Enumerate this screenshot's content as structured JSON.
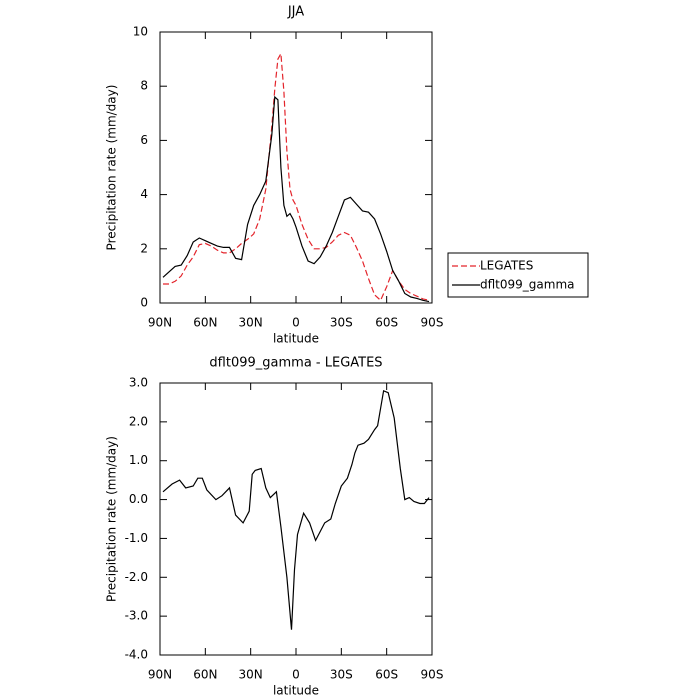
{
  "chart_data": [
    {
      "type": "line",
      "title": "JJA",
      "xlabel": "latitude",
      "ylabel": "Precipitation rate (mm/day)",
      "x": [
        88,
        84,
        80,
        76,
        72,
        68,
        64,
        60,
        56,
        52,
        48,
        44,
        40,
        36,
        32,
        28,
        24,
        20,
        16,
        14,
        12,
        10,
        8,
        6,
        4,
        2,
        0,
        -4,
        -8,
        -12,
        -16,
        -20,
        -24,
        -28,
        -32,
        -36,
        -40,
        -44,
        -48,
        -52,
        -56,
        -60,
        -64,
        -68,
        -72,
        -76,
        -80,
        -84,
        -88
      ],
      "series": [
        {
          "name": "LEGATES",
          "color": "#e3242b",
          "linestyle": "dashed",
          "values": [
            0.7,
            0.7,
            0.8,
            1.0,
            1.4,
            1.7,
            2.15,
            2.2,
            2.1,
            1.95,
            1.85,
            1.85,
            2.0,
            2.2,
            2.35,
            2.55,
            3.1,
            4.2,
            6.5,
            7.9,
            9.0,
            9.2,
            7.8,
            5.6,
            4.2,
            3.8,
            3.6,
            2.9,
            2.35,
            2.0,
            2.0,
            2.05,
            2.25,
            2.5,
            2.6,
            2.5,
            2.05,
            1.55,
            0.9,
            0.3,
            0.1,
            0.6,
            1.2,
            0.8,
            0.5,
            0.35,
            0.25,
            0.15,
            0.1
          ]
        },
        {
          "name": "dflt099_gamma",
          "color": "#000000",
          "linestyle": "solid",
          "values": [
            0.95,
            1.15,
            1.35,
            1.4,
            1.75,
            2.25,
            2.4,
            2.3,
            2.2,
            2.1,
            2.05,
            2.05,
            1.65,
            1.6,
            2.9,
            3.6,
            4.0,
            4.5,
            6.2,
            7.6,
            7.5,
            5.0,
            3.6,
            3.2,
            3.3,
            3.1,
            2.8,
            2.1,
            1.55,
            1.45,
            1.7,
            2.1,
            2.6,
            3.2,
            3.8,
            3.9,
            3.65,
            3.4,
            3.35,
            3.1,
            2.55,
            1.9,
            1.2,
            0.8,
            0.35,
            0.22,
            0.17,
            0.1,
            0.05
          ]
        }
      ],
      "xlim": [
        90,
        -90
      ],
      "xticks": [
        {
          "value": 90,
          "label": "90N"
        },
        {
          "value": 60,
          "label": "60N"
        },
        {
          "value": 30,
          "label": "30N"
        },
        0,
        {
          "value": -30,
          "label": "30S"
        },
        {
          "value": -60,
          "label": "60S"
        },
        {
          "value": -90,
          "label": "90S"
        }
      ],
      "ylim": [
        0,
        10
      ],
      "yticks": [
        0,
        2,
        4,
        6,
        8,
        10
      ],
      "legend": "right"
    },
    {
      "type": "line",
      "title": "dflt099_gamma - LEGATES",
      "xlabel": "latitude",
      "ylabel": "Precipitation rate (mm/day)",
      "x": [
        88,
        82,
        77,
        73,
        68,
        65,
        62,
        59,
        53,
        49,
        44,
        40,
        35,
        31,
        29,
        27,
        23,
        20,
        17,
        13,
        10,
        6,
        3,
        1,
        -1,
        -5,
        -9,
        -13,
        -19,
        -23,
        -26,
        -30,
        -34,
        -37,
        -39,
        -41,
        -45,
        -48,
        -52,
        -54,
        -58,
        -61,
        -65,
        -69,
        -72,
        -75,
        -78,
        -82,
        -85,
        -88
      ],
      "color": "#000000",
      "values": [
        0.2,
        0.4,
        0.5,
        0.3,
        0.35,
        0.55,
        0.55,
        0.25,
        0.0,
        0.1,
        0.3,
        -0.4,
        -0.6,
        -0.3,
        0.65,
        0.75,
        0.8,
        0.3,
        0.05,
        0.2,
        -0.7,
        -2.0,
        -3.35,
        -1.8,
        -0.9,
        -0.35,
        -0.6,
        -1.05,
        -0.6,
        -0.5,
        -0.1,
        0.35,
        0.55,
        0.9,
        1.2,
        1.4,
        1.45,
        1.55,
        1.8,
        1.9,
        2.8,
        2.75,
        2.1,
        0.8,
        0.0,
        0.05,
        -0.05,
        -0.1,
        -0.1,
        0.05
      ],
      "xlim": [
        90,
        -90
      ],
      "xticks": [
        {
          "value": 90,
          "label": "90N"
        },
        {
          "value": 60,
          "label": "60N"
        },
        {
          "value": 30,
          "label": "30N"
        },
        0,
        {
          "value": -30,
          "label": "30S"
        },
        {
          "value": -60,
          "label": "60S"
        },
        {
          "value": -90,
          "label": "90S"
        }
      ],
      "ylim": [
        -4,
        3
      ],
      "yticks": [
        {
          "value": 3,
          "label": "3.0"
        },
        {
          "value": 2,
          "label": "2.0"
        },
        {
          "value": 1,
          "label": "1.0"
        },
        {
          "value": 0,
          "label": "0.0"
        },
        {
          "value": -1,
          "label": "-1.0"
        },
        {
          "value": -2,
          "label": "-2.0"
        },
        {
          "value": -3,
          "label": "-3.0"
        },
        {
          "value": -4,
          "label": "-4.0"
        }
      ]
    }
  ]
}
